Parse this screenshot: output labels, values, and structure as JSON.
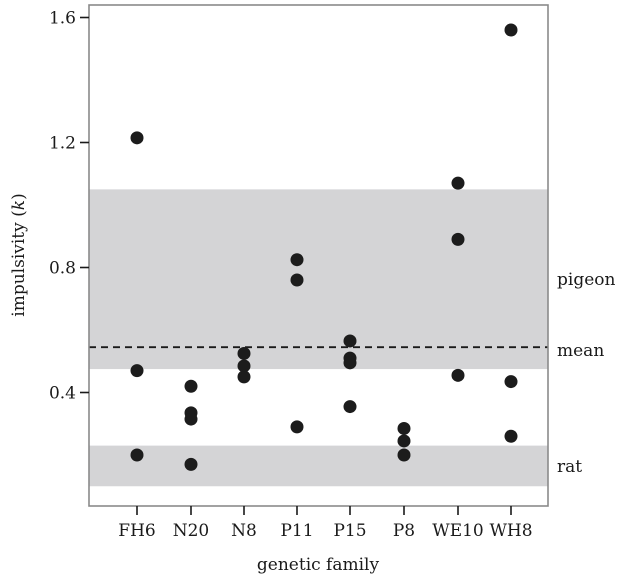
{
  "chart_data": {
    "type": "scatter",
    "title": "",
    "xlabel": "genetic family",
    "ylabel_prefix": "impulsivity (",
    "ylabel_var": "k",
    "ylabel_suffix": ")",
    "ylim": [
      0.05,
      1.65
    ],
    "yticks": [
      0.4,
      0.8,
      1.2,
      1.6
    ],
    "ytick_labels": [
      "0.4",
      "0.8",
      "1.2",
      "1.6"
    ],
    "categories": [
      "FH6",
      "N20",
      "N8",
      "P11",
      "P15",
      "P8",
      "WE10",
      "WH8"
    ],
    "points": [
      {
        "category": "FH6",
        "values": [
          1.215,
          0.47,
          0.2
        ]
      },
      {
        "category": "N20",
        "values": [
          0.42,
          0.335,
          0.315,
          0.17
        ]
      },
      {
        "category": "N8",
        "values": [
          0.525,
          0.485,
          0.45
        ]
      },
      {
        "category": "P11",
        "values": [
          0.825,
          0.76,
          0.29
        ]
      },
      {
        "category": "P15",
        "values": [
          0.565,
          0.51,
          0.495,
          0.355
        ]
      },
      {
        "category": "P8",
        "values": [
          0.285,
          0.245,
          0.2
        ]
      },
      {
        "category": "WE10",
        "values": [
          1.07,
          0.89,
          0.455
        ]
      },
      {
        "category": "WH8",
        "values": [
          1.56,
          0.435,
          0.26
        ]
      }
    ],
    "bands": [
      {
        "label": "pigeon",
        "low": 0.475,
        "high": 1.05,
        "color": "#d4d4d6"
      },
      {
        "label": "rat",
        "low": 0.1,
        "high": 0.23,
        "color": "#d4d4d6"
      }
    ],
    "mean_line": {
      "label": "mean",
      "value": 0.545
    },
    "grid": false,
    "legend": "none",
    "point_color": "#1c1c1c",
    "frame_color": "#8a8a8a"
  }
}
